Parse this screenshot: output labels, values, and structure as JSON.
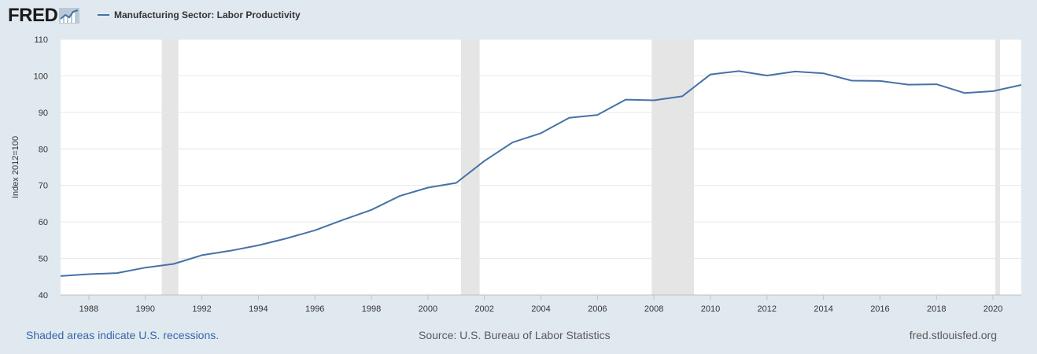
{
  "brand": {
    "logo_text": "FRED"
  },
  "legend": {
    "series_label": "Manufacturing Sector: Labor Productivity"
  },
  "footer": {
    "recession_note": "Shaded areas indicate U.S. recessions.",
    "source": "Source: U.S. Bureau of Labor Statistics",
    "site": "fred.stlouisfed.org"
  },
  "colors": {
    "line": "#4572a7",
    "recession": "#e5e5e5",
    "grid": "#e6e6e6",
    "plot_bg": "#ffffff",
    "page_bg": "#e1e9f0"
  },
  "chart_data": {
    "type": "line",
    "title": "",
    "xlabel": "",
    "ylabel": "Index 2012=100",
    "ylim": [
      40,
      110
    ],
    "xlim": [
      1987,
      2021
    ],
    "yticks": [
      40,
      50,
      60,
      70,
      80,
      90,
      100,
      110
    ],
    "xticks": [
      1988,
      1990,
      1992,
      1994,
      1996,
      1998,
      2000,
      2002,
      2004,
      2006,
      2008,
      2010,
      2012,
      2014,
      2016,
      2018,
      2020
    ],
    "grid": "horizontal",
    "legend_position": "top-left",
    "recessions": [
      [
        1990.58,
        1991.17
      ],
      [
        2001.17,
        2001.83
      ],
      [
        2007.92,
        2009.42
      ],
      [
        2020.08,
        2020.25
      ]
    ],
    "series": [
      {
        "name": "Manufacturing Sector: Labor Productivity",
        "x": [
          1987,
          1988,
          1989,
          1990,
          1991,
          1992,
          1993,
          1994,
          1995,
          1996,
          1997,
          1998,
          1999,
          2000,
          2001,
          2002,
          2003,
          2004,
          2005,
          2006,
          2007,
          2008,
          2009,
          2010,
          2011,
          2012,
          2013,
          2014,
          2015,
          2016,
          2017,
          2018,
          2019,
          2020,
          2021
        ],
        "values": [
          45.2,
          45.7,
          46.0,
          47.5,
          48.5,
          50.9,
          52.1,
          53.6,
          55.5,
          57.7,
          60.6,
          63.3,
          67.1,
          69.4,
          70.7,
          76.7,
          81.8,
          84.3,
          88.5,
          89.3,
          93.5,
          93.3,
          94.4,
          100.4,
          101.3,
          100.1,
          101.2,
          100.7,
          98.7,
          98.6,
          97.6,
          97.7,
          95.3,
          95.8,
          97.5
        ]
      }
    ]
  }
}
